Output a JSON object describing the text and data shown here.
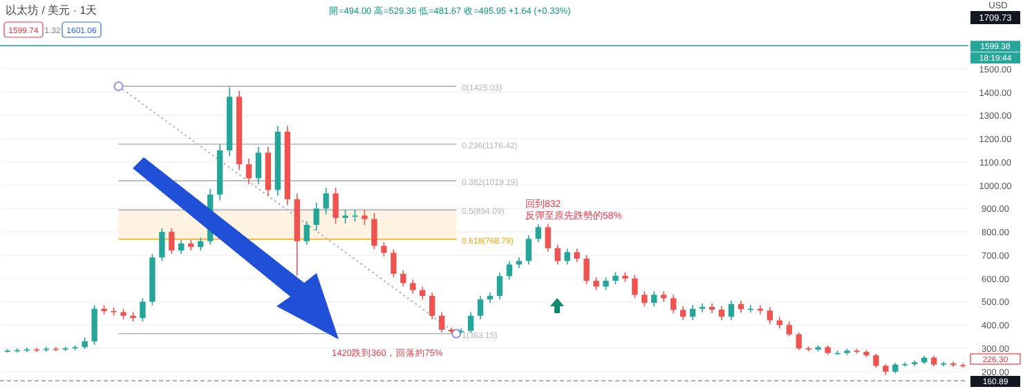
{
  "chart_data": {
    "type": "candlestick",
    "title": "以太坊 / 美元 · 1天",
    "subtitle": "開=494.00 高=529.36 低=481.67 收=495.95 +1.64 (+0.33%)",
    "categories": [
      null,
      null,
      null,
      null,
      null,
      null,
      null,
      null,
      null,
      null,
      null,
      null,
      null,
      null,
      null,
      null,
      null,
      null,
      null,
      null,
      null,
      null,
      null,
      null,
      null,
      null,
      null,
      null,
      null,
      null,
      null,
      null,
      null,
      null,
      null,
      null,
      null,
      null,
      null,
      null,
      null,
      null,
      null,
      null,
      null,
      null,
      null,
      null,
      null,
      null,
      null,
      null,
      null,
      null,
      null,
      null,
      null,
      null,
      null,
      null,
      null,
      null,
      null,
      null,
      null,
      null,
      null,
      null,
      null,
      null,
      null,
      null,
      null,
      null,
      null,
      null,
      null,
      null,
      null,
      null,
      null,
      null,
      null,
      null,
      null,
      null,
      null,
      null,
      null,
      null,
      null,
      null,
      null,
      null,
      null,
      null,
      null,
      null,
      null,
      null
    ],
    "ohlc": [
      [
        288,
        296,
        282,
        290
      ],
      [
        290,
        300,
        282,
        292
      ],
      [
        292,
        303,
        284,
        295
      ],
      [
        295,
        303,
        285,
        293
      ],
      [
        293,
        306,
        285,
        298
      ],
      [
        298,
        306,
        288,
        296
      ],
      [
        296,
        308,
        288,
        300
      ],
      [
        300,
        313,
        292,
        305
      ],
      [
        305,
        345,
        297,
        330
      ],
      [
        330,
        485,
        315,
        470
      ],
      [
        470,
        485,
        445,
        460
      ],
      [
        460,
        475,
        440,
        455
      ],
      [
        455,
        470,
        425,
        440
      ],
      [
        440,
        455,
        415,
        430
      ],
      [
        430,
        515,
        415,
        500
      ],
      [
        500,
        705,
        485,
        690
      ],
      [
        690,
        815,
        675,
        800
      ],
      [
        800,
        815,
        705,
        720
      ],
      [
        720,
        765,
        705,
        750
      ],
      [
        750,
        765,
        720,
        735
      ],
      [
        735,
        775,
        720,
        760
      ],
      [
        760,
        985,
        745,
        960
      ],
      [
        960,
        1175,
        935,
        1150
      ],
      [
        1150,
        1420,
        1125,
        1380
      ],
      [
        1380,
        1405,
        1065,
        1090
      ],
      [
        1090,
        1115,
        1005,
        1030
      ],
      [
        1030,
        1165,
        1005,
        1140
      ],
      [
        1140,
        1165,
        955,
        980
      ],
      [
        980,
        1255,
        955,
        1230
      ],
      [
        1230,
        1255,
        915,
        940
      ],
      [
        940,
        965,
        612,
        760
      ],
      [
        760,
        845,
        745,
        830
      ],
      [
        830,
        925,
        805,
        900
      ],
      [
        900,
        990,
        875,
        965
      ],
      [
        965,
        990,
        835,
        860
      ],
      [
        860,
        895,
        835,
        870
      ],
      [
        870,
        895,
        845,
        870
      ],
      [
        870,
        895,
        830,
        855
      ],
      [
        855,
        880,
        725,
        740
      ],
      [
        740,
        755,
        695,
        710
      ],
      [
        710,
        725,
        605,
        620
      ],
      [
        620,
        635,
        565,
        580
      ],
      [
        580,
        595,
        535,
        550
      ],
      [
        550,
        565,
        510,
        525
      ],
      [
        525,
        540,
        425,
        440
      ],
      [
        440,
        455,
        368,
        380
      ],
      [
        380,
        390,
        363,
        372
      ],
      [
        372,
        385,
        364,
        375
      ],
      [
        375,
        455,
        367,
        440
      ],
      [
        440,
        525,
        425,
        510
      ],
      [
        510,
        540,
        495,
        525
      ],
      [
        525,
        625,
        510,
        610
      ],
      [
        610,
        675,
        595,
        660
      ],
      [
        660,
        690,
        645,
        675
      ],
      [
        675,
        785,
        660,
        770
      ],
      [
        770,
        832,
        755,
        820
      ],
      [
        820,
        835,
        715,
        730
      ],
      [
        730,
        745,
        660,
        675
      ],
      [
        675,
        728,
        660,
        713
      ],
      [
        713,
        728,
        670,
        685
      ],
      [
        685,
        700,
        575,
        590
      ],
      [
        590,
        605,
        550,
        565
      ],
      [
        565,
        605,
        550,
        590
      ],
      [
        590,
        627,
        575,
        612
      ],
      [
        612,
        627,
        585,
        600
      ],
      [
        600,
        615,
        515,
        530
      ],
      [
        530,
        545,
        480,
        495
      ],
      [
        495,
        545,
        480,
        530
      ],
      [
        530,
        545,
        500,
        515
      ],
      [
        515,
        530,
        450,
        465
      ],
      [
        465,
        480,
        421,
        436
      ],
      [
        436,
        485,
        421,
        470
      ],
      [
        470,
        493,
        455,
        478
      ],
      [
        478,
        493,
        451,
        466
      ],
      [
        466,
        481,
        421,
        436
      ],
      [
        436,
        505,
        421,
        490
      ],
      [
        490,
        505,
        453,
        468
      ],
      [
        468,
        485,
        453,
        470
      ],
      [
        470,
        485,
        447,
        462
      ],
      [
        462,
        477,
        405,
        420
      ],
      [
        420,
        435,
        385,
        400
      ],
      [
        400,
        415,
        352,
        360
      ],
      [
        360,
        368,
        292,
        300
      ],
      [
        300,
        308,
        287,
        295
      ],
      [
        295,
        313,
        287,
        305
      ],
      [
        305,
        313,
        272,
        280
      ],
      [
        280,
        290,
        272,
        280
      ],
      [
        280,
        298,
        272,
        290
      ],
      [
        290,
        298,
        277,
        285
      ],
      [
        285,
        293,
        262,
        270
      ],
      [
        270,
        278,
        217,
        225
      ],
      [
        225,
        233,
        185,
        200
      ],
      [
        200,
        238,
        192,
        230
      ],
      [
        230,
        240,
        222,
        232
      ],
      [
        232,
        248,
        224,
        240
      ],
      [
        240,
        268,
        232,
        260
      ],
      [
        260,
        268,
        222,
        230
      ],
      [
        230,
        243,
        222,
        235
      ],
      [
        235,
        243,
        220,
        228
      ],
      [
        228,
        236,
        218,
        226.3
      ]
    ],
    "ylim": [
      155,
      1600
    ],
    "yticks": [
      {
        "value": 200,
        "label": "200.00"
      },
      {
        "value": 300,
        "label": "300.00"
      },
      {
        "value": 400,
        "label": "400.00"
      },
      {
        "value": 500,
        "label": "500.00"
      },
      {
        "value": 600,
        "label": "600.00"
      },
      {
        "value": 700,
        "label": "700.00"
      },
      {
        "value": 800,
        "label": "800.00"
      },
      {
        "value": 900,
        "label": "900.00"
      },
      {
        "value": 1000,
        "label": "1000.00"
      },
      {
        "value": 1100,
        "label": "1100.00"
      },
      {
        "value": 1200,
        "label": "1200.00"
      },
      {
        "value": 1300,
        "label": "1300.00"
      },
      {
        "value": 1400,
        "label": "1400.00"
      },
      {
        "value": 1500,
        "label": "1500.00"
      }
    ],
    "tick_labels": "y",
    "grid": "y",
    "ref_lines": [
      {
        "axis": "y",
        "value": 1425.03,
        "label": "0(1425.03)",
        "color": "#b2b5be"
      },
      {
        "axis": "y",
        "value": 1176.42,
        "label": "0.236(1176.42)",
        "color": "#b2b5be"
      },
      {
        "axis": "y",
        "value": 1019.19,
        "label": "0.382(1019.19)",
        "color": "#b2b5be"
      },
      {
        "axis": "y",
        "value": 894.09,
        "label": "0.5(894.09)",
        "color": "#b2b5be"
      },
      {
        "axis": "y",
        "value": 768.79,
        "label": "0.618(768.79)",
        "color": "#f7a600"
      },
      {
        "axis": "y",
        "value": 363.15,
        "label": "1(363.15)",
        "color": "#b2b5be"
      },
      {
        "axis": "y",
        "value": 1599.38,
        "label": "1599.38",
        "color": "#26a69a"
      },
      {
        "axis": "y",
        "value": 160.89,
        "label": "160.89",
        "color": "#9598a1",
        "line_style": "dashed"
      }
    ],
    "bands": [
      {
        "axis": "y",
        "from": 768.79,
        "to": 894.09,
        "color": "#fdf0d8"
      }
    ],
    "annotations": [
      "回到832\n反彈至原先跌勢的58%",
      "1420跌到360，回落約75%",
      "1599.74",
      "1.32",
      "1601.06",
      "1709.73",
      "18:19:44",
      "226.30",
      "USD"
    ]
  }
}
